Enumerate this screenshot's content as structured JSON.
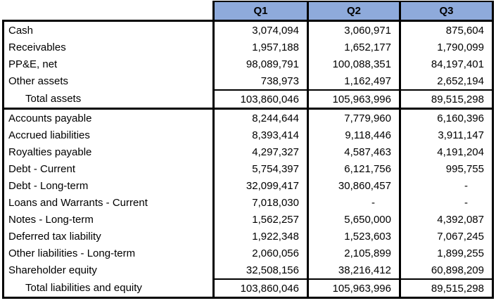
{
  "chart_data": {
    "type": "table",
    "columns": [
      "Q1",
      "Q2",
      "Q3"
    ],
    "sections": [
      {
        "name": "assets",
        "rows": [
          {
            "label": "Cash",
            "values": [
              "3,074,094",
              "3,060,971",
              "875,604"
            ],
            "is_total": false
          },
          {
            "label": "Receivables",
            "values": [
              "1,957,188",
              "1,652,177",
              "1,790,099"
            ],
            "is_total": false
          },
          {
            "label": "PP&E, net",
            "values": [
              "98,089,791",
              "100,088,351",
              "84,197,401"
            ],
            "is_total": false
          },
          {
            "label": "Other assets",
            "values": [
              "738,973",
              "1,162,497",
              "2,652,194"
            ],
            "is_total": false
          },
          {
            "label": "Total assets",
            "values": [
              "103,860,046",
              "105,963,996",
              "89,515,298"
            ],
            "is_total": true
          }
        ]
      },
      {
        "name": "liabilities-and-equity",
        "rows": [
          {
            "label": "Accounts payable",
            "values": [
              "8,244,644",
              "7,779,960",
              "6,160,396"
            ],
            "is_total": false
          },
          {
            "label": "Accrued liabilities",
            "values": [
              "8,393,414",
              "9,118,446",
              "3,911,147"
            ],
            "is_total": false
          },
          {
            "label": "Royalties payable",
            "values": [
              "4,297,327",
              "4,587,463",
              "4,191,204"
            ],
            "is_total": false
          },
          {
            "label": "Debt - Current",
            "values": [
              "5,754,397",
              "6,121,756",
              "995,755"
            ],
            "is_total": false
          },
          {
            "label": "Debt - Long-term",
            "values": [
              "32,099,417",
              "30,860,457",
              "-"
            ],
            "is_total": false
          },
          {
            "label": "Loans and Warrants - Current",
            "values": [
              "7,018,030",
              "-",
              "-"
            ],
            "is_total": false
          },
          {
            "label": "Notes - Long-term",
            "values": [
              "1,562,257",
              "5,650,000",
              "4,392,087"
            ],
            "is_total": false
          },
          {
            "label": "Deferred tax liability",
            "values": [
              "1,922,348",
              "1,523,603",
              "7,067,245"
            ],
            "is_total": false
          },
          {
            "label": "Other liabilities - Long-term",
            "values": [
              "2,060,056",
              "2,105,899",
              "1,899,255"
            ],
            "is_total": false
          },
          {
            "label": "Shareholder equity",
            "values": [
              "32,508,156",
              "38,216,412",
              "60,898,209"
            ],
            "is_total": false
          },
          {
            "label": "Total liabilities and equity",
            "values": [
              "103,860,046",
              "105,963,996",
              "89,515,298"
            ],
            "is_total": true
          }
        ]
      }
    ],
    "layout": {
      "grid": "on",
      "legend": "none",
      "value_alignment": "right",
      "header_alignment": "center"
    },
    "colors": {
      "header_bg": "#8EAADB",
      "border": "#000000",
      "text": "#000000",
      "background": "#FFFFFF"
    }
  }
}
